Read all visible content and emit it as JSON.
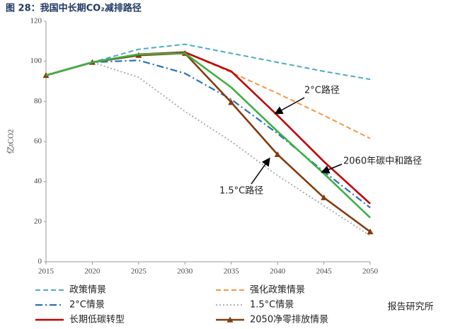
{
  "chart_data": {
    "type": "line",
    "title": "图 28：我国中长期CO₂减排路径",
    "y_label": "亿tCO2",
    "xlim": [
      2015,
      2050
    ],
    "xticks": [
      2015,
      2020,
      2025,
      2030,
      2035,
      2040,
      2045,
      2050
    ],
    "ylim": [
      0,
      120
    ],
    "yticks": [
      0,
      20,
      40,
      60,
      80,
      100,
      120
    ],
    "grid": false,
    "x": [
      2015,
      2020,
      2025,
      2030,
      2035,
      2040,
      2045,
      2050
    ],
    "series": [
      {
        "name": "政策情景",
        "color": "#4bacc6",
        "dash": "dashed",
        "values": [
          93,
          99.5,
          106,
          108.5,
          104,
          99.5,
          95,
          91
        ]
      },
      {
        "name": "强化政策情景",
        "color": "#f79646",
        "dash": "dashed",
        "values": [
          93,
          99.5,
          103.5,
          104.5,
          94.5,
          84,
          73,
          61.5
        ]
      },
      {
        "name": "2°C情景",
        "color": "#2e6fb5",
        "dash": "dashdot",
        "values": [
          93,
          99.5,
          100.5,
          94,
          81,
          64,
          45,
          27
        ]
      },
      {
        "name": "1.5°C情景",
        "color": "#a6a6a6",
        "dash": "dotted",
        "values": [
          93,
          99.5,
          92,
          75,
          60,
          43,
          28,
          13
        ]
      },
      {
        "name": "长期低碳转型",
        "color": "#c00000",
        "dash": "solid",
        "values": [
          93,
          99.5,
          103.5,
          104.5,
          95,
          73,
          50,
          29
        ]
      },
      {
        "name": "2050净零排放情景",
        "color": "#843c0c",
        "dash": "solid",
        "marker": "triangle",
        "values": [
          93,
          99.5,
          103,
          104,
          79.5,
          53.5,
          32,
          15
        ]
      },
      {
        "color": "#3cb043",
        "dash": "solid",
        "values": [
          93,
          99.5,
          103.5,
          104,
          87,
          65,
          44,
          22
        ]
      }
    ],
    "annotations": [
      "2°C路径",
      "2060年碳中和路径",
      "1.5°C路径"
    ],
    "watermark": "报告研究所"
  }
}
